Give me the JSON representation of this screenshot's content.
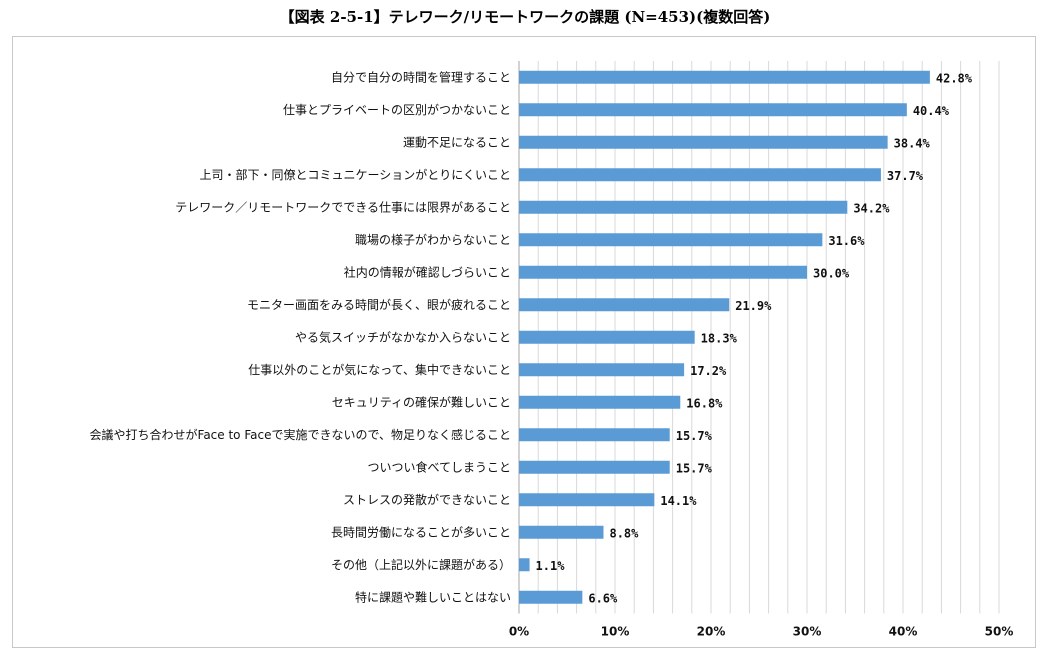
{
  "chart_data": {
    "type": "bar",
    "orientation": "horizontal",
    "title": "【図表 2-5-1】テレワーク/リモートワークの課題 (N=453)(複数回答)",
    "categories": [
      "自分で自分の時間を管理すること",
      "仕事とプライベートの区別がつかないこと",
      "運動不足になること",
      "上司・部下・同僚とコミュニケーションがとりにくいこと",
      "テレワーク／リモートワークでできる仕事には限界があること",
      "職場の様子がわからないこと",
      "社内の情報が確認しづらいこと",
      "モニター画面をみる時間が長く、眼が疲れること",
      "やる気スイッチがなかなか入らないこと",
      "仕事以外のことが気になって、集中できないこと",
      "セキュリティの確保が難しいこと",
      "会議や打ち合わせがFace to Faceで実施できないので、物足りなく感じること",
      "ついつい食べてしまうこと",
      "ストレスの発散ができないこと",
      "長時間労働になることが多いこと",
      "その他（上記以外に課題がある）",
      "特に課題や難しいことはない"
    ],
    "values": [
      42.8,
      40.4,
      38.4,
      37.7,
      34.2,
      31.6,
      30.0,
      21.9,
      18.3,
      17.2,
      16.8,
      15.7,
      15.7,
      14.1,
      8.8,
      1.1,
      6.6
    ],
    "value_labels": [
      "42.8%",
      "40.4%",
      "38.4%",
      "37.7%",
      "34.2%",
      "31.6%",
      "30.0%",
      "21.9%",
      "18.3%",
      "17.2%",
      "16.8%",
      "15.7%",
      "15.7%",
      "14.1%",
      "8.8%",
      "1.1%",
      "6.6%"
    ],
    "xlim": [
      0,
      50
    ],
    "ticks": [
      0,
      10,
      20,
      30,
      40,
      50
    ],
    "tick_labels": [
      "0%",
      "10%",
      "20%",
      "30%",
      "40%",
      "50%"
    ],
    "xlabel": "",
    "ylabel": "",
    "grid": true,
    "bar_color": "#5b9bd5",
    "grid_color": "#d9d9d9"
  }
}
